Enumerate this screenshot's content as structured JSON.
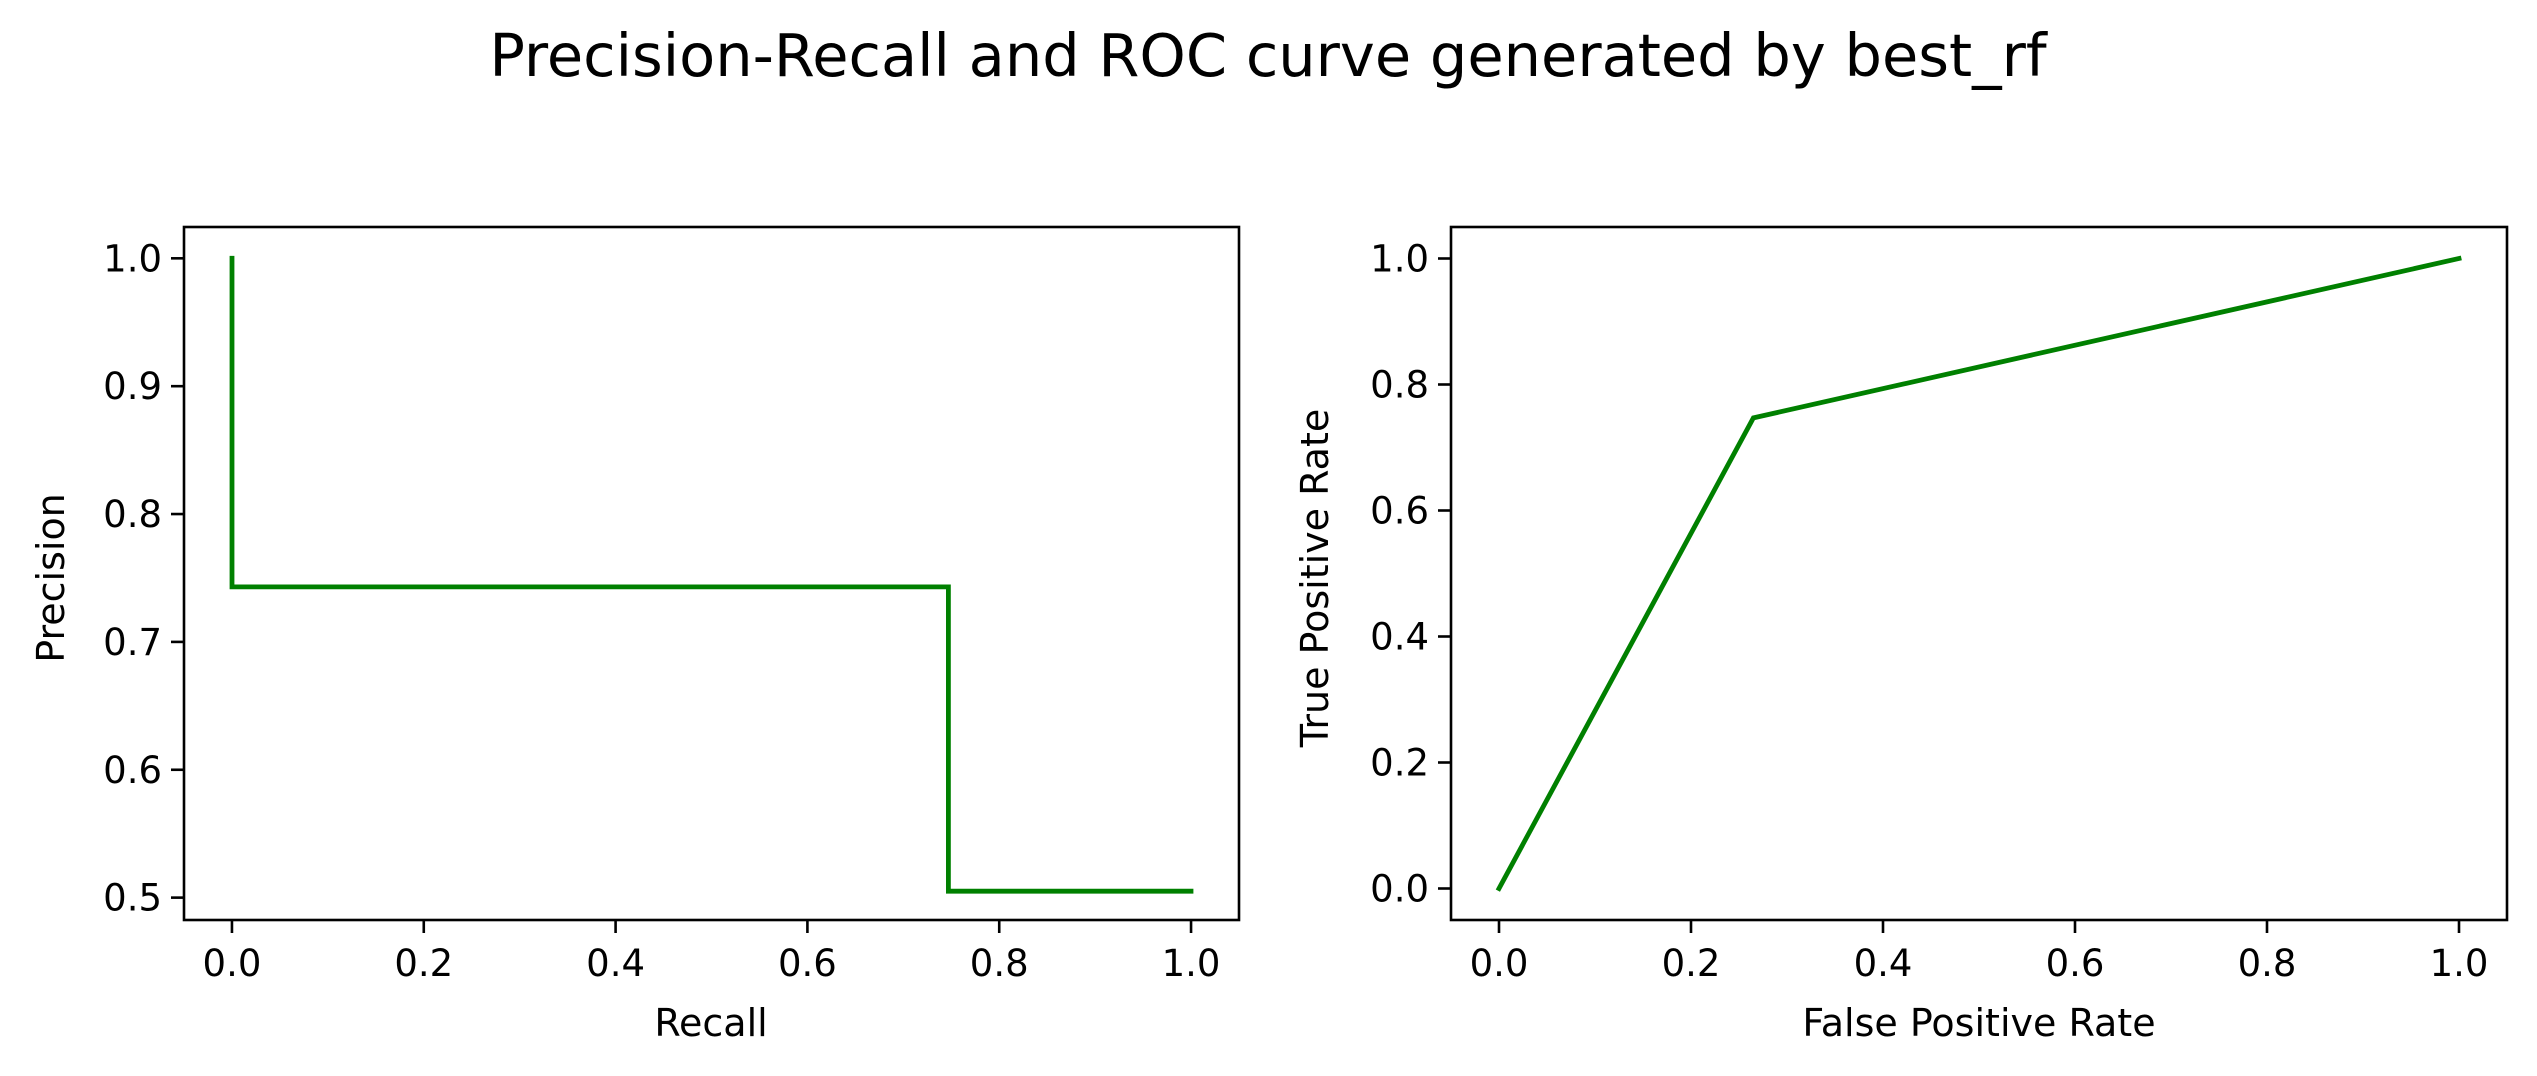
{
  "figure": {
    "title": "Precision-Recall and ROC curve generated by best_rf"
  },
  "chart_data": [
    {
      "type": "line",
      "title": "",
      "xlabel": "Recall",
      "ylabel": "Precision",
      "xlim": [
        -0.05,
        1.05
      ],
      "ylim": [
        0.4825,
        1.0245
      ],
      "xticks": [
        0.0,
        0.2,
        0.4,
        0.6,
        0.8,
        1.0
      ],
      "xtick_labels": [
        "0.0",
        "0.2",
        "0.4",
        "0.6",
        "0.8",
        "1.0"
      ],
      "yticks": [
        0.5,
        0.6,
        0.7,
        0.8,
        0.9,
        1.0
      ],
      "ytick_labels": [
        "0.5",
        "0.6",
        "0.7",
        "0.8",
        "0.9",
        "1.0"
      ],
      "grid": false,
      "series": [
        {
          "color": "#008000",
          "x": [
            0.0,
            0.0,
            0.747,
            0.747,
            1.0
          ],
          "y": [
            1.0,
            0.743,
            0.743,
            0.505,
            0.505
          ]
        }
      ]
    },
    {
      "type": "line",
      "title": "",
      "xlabel": "False Positive Rate",
      "ylabel": "True Positive Rate",
      "xlim": [
        -0.05,
        1.05
      ],
      "ylim": [
        -0.05,
        1.05
      ],
      "xticks": [
        0.0,
        0.2,
        0.4,
        0.6,
        0.8,
        1.0
      ],
      "xtick_labels": [
        "0.0",
        "0.2",
        "0.4",
        "0.6",
        "0.8",
        "1.0"
      ],
      "yticks": [
        0.0,
        0.2,
        0.4,
        0.6,
        0.8,
        1.0
      ],
      "ytick_labels": [
        "0.0",
        "0.2",
        "0.4",
        "0.6",
        "0.8",
        "1.0"
      ],
      "grid": false,
      "series": [
        {
          "color": "#008000",
          "x": [
            0.0,
            0.265,
            1.0
          ],
          "y": [
            0.0,
            0.747,
            1.0
          ]
        }
      ]
    }
  ]
}
